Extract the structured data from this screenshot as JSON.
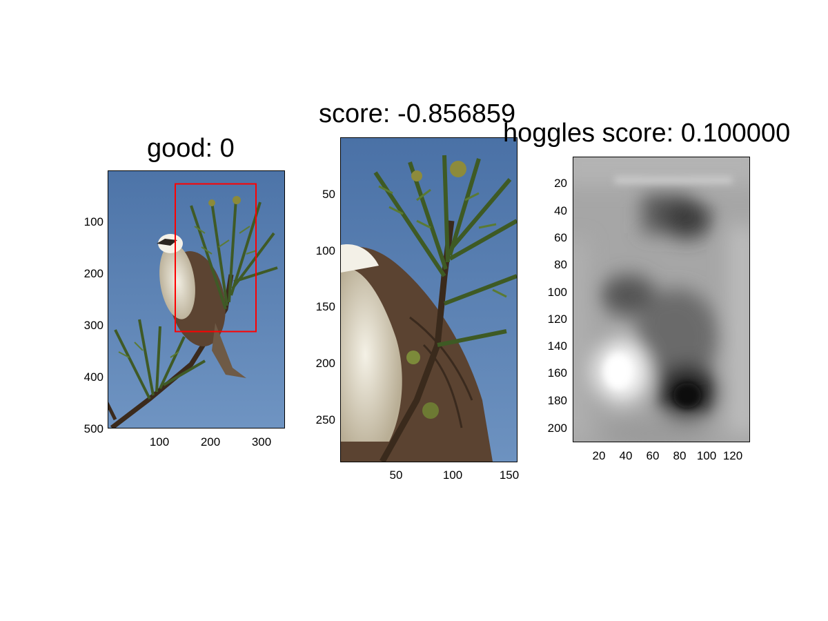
{
  "chart_data": [
    {
      "type": "image",
      "title": "good: 0",
      "xlim": [
        0,
        340
      ],
      "ylim": [
        0,
        500
      ],
      "xticks": [
        100,
        200,
        300
      ],
      "yticks": [
        100,
        200,
        300,
        400,
        500
      ],
      "bounding_box": {
        "x1": 130,
        "y1": 25,
        "x2": 288,
        "y2": 313,
        "color": "#ff0000"
      }
    },
    {
      "type": "image",
      "title": "score: -0.856859",
      "xlim": [
        0,
        157
      ],
      "ylim": [
        0,
        288
      ],
      "xticks": [
        50,
        100,
        150
      ],
      "yticks": [
        50,
        100,
        150,
        200,
        250
      ]
    },
    {
      "type": "heatmap",
      "title": "hoggles score: 0.100000",
      "colormap": "gray",
      "xlim": [
        0,
        132
      ],
      "ylim": [
        0,
        212
      ],
      "xticks": [
        20,
        40,
        60,
        80,
        100,
        120
      ],
      "yticks": [
        20,
        40,
        60,
        80,
        100,
        120,
        140,
        160,
        180,
        200
      ]
    }
  ]
}
